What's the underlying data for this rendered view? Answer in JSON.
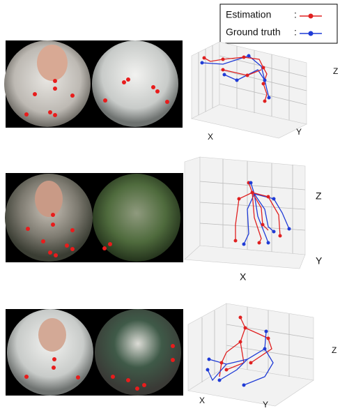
{
  "legend": {
    "items": [
      {
        "label": "Estimation",
        "separator": ":"
      },
      {
        "label": "Ground truth",
        "separator": ":"
      }
    ]
  },
  "rows": [
    {
      "axis_labels": {
        "x": "X",
        "y": "Y",
        "z": "Z"
      }
    },
    {
      "axis_labels": {
        "x": "X",
        "y": "Y",
        "z": "Z"
      }
    },
    {
      "axis_labels": {
        "x": "X",
        "y": "Y",
        "z": "Z"
      }
    }
  ]
}
